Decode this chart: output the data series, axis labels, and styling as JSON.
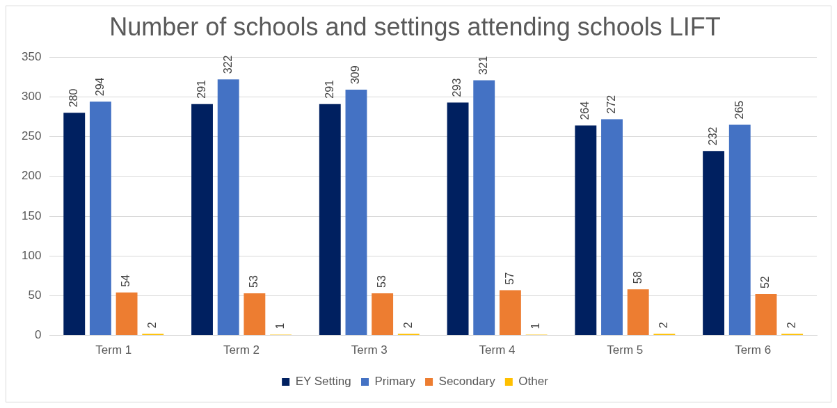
{
  "chart_data": {
    "type": "bar",
    "title": "Number of schools and settings attending schools LIFT",
    "categories": [
      "Term 1",
      "Term 2",
      "Term 3",
      "Term 4",
      "Term 5",
      "Term 6"
    ],
    "series": [
      {
        "name": "EY Setting",
        "color": "#002060",
        "values": [
          280,
          291,
          291,
          293,
          264,
          232
        ]
      },
      {
        "name": "Primary",
        "color": "#4472c4",
        "values": [
          294,
          322,
          309,
          321,
          272,
          265
        ]
      },
      {
        "name": "Secondary",
        "color": "#ed7d31",
        "values": [
          54,
          53,
          53,
          57,
          58,
          52
        ]
      },
      {
        "name": "Other",
        "color": "#ffc000",
        "values": [
          2,
          1,
          2,
          1,
          2,
          2
        ]
      }
    ],
    "ylim": [
      0,
      350
    ],
    "yticks": [
      0,
      50,
      100,
      150,
      200,
      250,
      300,
      350
    ],
    "grid": "y",
    "legend": "bottom",
    "data_labels": true
  }
}
